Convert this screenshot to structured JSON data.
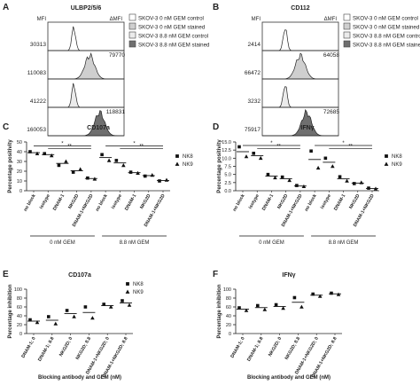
{
  "panels": {
    "A": {
      "letter": "A",
      "title": "ULBP2/5/6",
      "mfi_label": "MFI",
      "dmfi_label": "ΔMFI",
      "mfi_values": [
        "30313",
        "110083",
        "41222",
        "160053"
      ],
      "dmfi_values": [
        "79770",
        "118831"
      ]
    },
    "B": {
      "letter": "B",
      "title": "CD112",
      "mfi_label": "MFI",
      "dmfi_label": "ΔMFI",
      "mfi_values": [
        "2414",
        "66472",
        "3232",
        "75917"
      ],
      "dmfi_values": [
        "64058",
        "72685"
      ]
    }
  },
  "histogram_legend": [
    {
      "label": "SKOV-3 0 nM GEM control",
      "color": "#ffffff"
    },
    {
      "label": "SKOV-3 0 nM GEM stained",
      "color": "#cfcfcf"
    },
    {
      "label": "SKOV-3 8.8 nM GEM control",
      "color": "#ebebeb"
    },
    {
      "label": "SKOV-3 8.8 nM GEM stained",
      "color": "#6f6f6f"
    }
  ],
  "sig": {
    "one": "*",
    "two": "**"
  },
  "chart_data": [
    {
      "panel": "C",
      "type": "scatter",
      "title": "CD107a",
      "ylabel": "Percentage positivity",
      "ylim": [
        0,
        50
      ],
      "yticks": [
        0,
        10,
        20,
        30,
        40,
        50
      ],
      "categories": [
        "no block",
        "isotype",
        "DNAM-1",
        "NKG2D",
        "DNAM-1+NKG2D",
        "no block",
        "isotype",
        "DNAM-1",
        "NKG2D",
        "DNAM-1+NKG2D"
      ],
      "groups": [
        {
          "label": "0 nM GEM",
          "from": 0,
          "to": 4
        },
        {
          "label": "8.8 nM GEM",
          "from": 5,
          "to": 9
        }
      ],
      "series": [
        {
          "name": "NK8",
          "marker": "square",
          "values": [
            40,
            38,
            26,
            19,
            13,
            37,
            31,
            19,
            15,
            10
          ]
        },
        {
          "name": "NK9",
          "marker": "triangle",
          "values": [
            38,
            36,
            30,
            22,
            12,
            31,
            26,
            18,
            16,
            11
          ]
        }
      ],
      "means": [
        39,
        37,
        28,
        20.5,
        12.5,
        34,
        28.5,
        18.5,
        15.5,
        10.5
      ]
    },
    {
      "panel": "D",
      "type": "scatter",
      "title": "IFNγ",
      "ylabel": "Percentage positivity",
      "ylim": [
        0,
        15
      ],
      "yticks": [
        0.0,
        2.5,
        5.0,
        7.5,
        10.0,
        12.5,
        15.0
      ],
      "categories": [
        "no block",
        "isotype",
        "DNAM-1",
        "NKG2D",
        "DNAM-1+NKG2D",
        "no block",
        "isotype",
        "DNAM-1",
        "NKG2D",
        "DNAM-1+NKG2D"
      ],
      "groups": [
        {
          "label": "0 nM GEM",
          "from": 0,
          "to": 4
        },
        {
          "label": "8.8 nM GEM",
          "from": 5,
          "to": 9
        }
      ],
      "series": [
        {
          "name": "NK8",
          "marker": "square",
          "values": [
            13.5,
            11.5,
            5.0,
            4.2,
            1.6,
            12.2,
            10.0,
            4.3,
            2.2,
            0.8
          ]
        },
        {
          "name": "NK9",
          "marker": "triangle",
          "values": [
            10.5,
            10.0,
            4.0,
            3.2,
            1.3,
            7.0,
            7.5,
            3.0,
            2.5,
            0.6
          ]
        }
      ],
      "means": [
        12,
        10.75,
        4.5,
        3.7,
        1.45,
        9.6,
        8.75,
        3.65,
        2.35,
        0.7
      ]
    },
    {
      "panel": "E",
      "type": "scatter",
      "title": "CD107a",
      "ylabel": "Percentage inhibition",
      "xlabel": "Blocking antibody and GEM (nM)",
      "ylim": [
        0,
        100
      ],
      "yticks": [
        0,
        20,
        40,
        60,
        80,
        100
      ],
      "categories": [
        "DNAM-1; 0",
        "DNAM-1; 8.8",
        "NKG2D; 0",
        "NKG2D; 8.8",
        "DNAM-1+NKG2D; 0",
        "DNAM-1+NKG2D; 8.8"
      ],
      "series": [
        {
          "name": "NK8",
          "marker": "square",
          "values": [
            31,
            38,
            52,
            60,
            66,
            74
          ]
        },
        {
          "name": "NK9",
          "marker": "triangle",
          "values": [
            25,
            22,
            38,
            35,
            60,
            64
          ]
        }
      ],
      "means": [
        28,
        30,
        45,
        47.5,
        63,
        69
      ]
    },
    {
      "panel": "F",
      "type": "scatter",
      "title": "IFNγ",
      "ylabel": "Percentage inhibition",
      "xlabel": "Blocking antibody and GEM (nM)",
      "ylim": [
        0,
        100
      ],
      "yticks": [
        0,
        20,
        40,
        60,
        80,
        100
      ],
      "categories": [
        "DNAM-1; 0",
        "DNAM-1; 8.8",
        "NKG2D; 0",
        "NKG2D; 8.8",
        "DNAM-1+NKG2D; 0",
        "DNAM-1+NKG2D; 8.8"
      ],
      "series": [
        {
          "name": "NK8",
          "marker": "square",
          "values": [
            58,
            63,
            65,
            81,
            89,
            91
          ]
        },
        {
          "name": "NK9",
          "marker": "triangle",
          "values": [
            52,
            54,
            57,
            60,
            84,
            88
          ]
        }
      ],
      "means": [
        55,
        58.5,
        61,
        70.5,
        86.5,
        89.5
      ]
    }
  ]
}
